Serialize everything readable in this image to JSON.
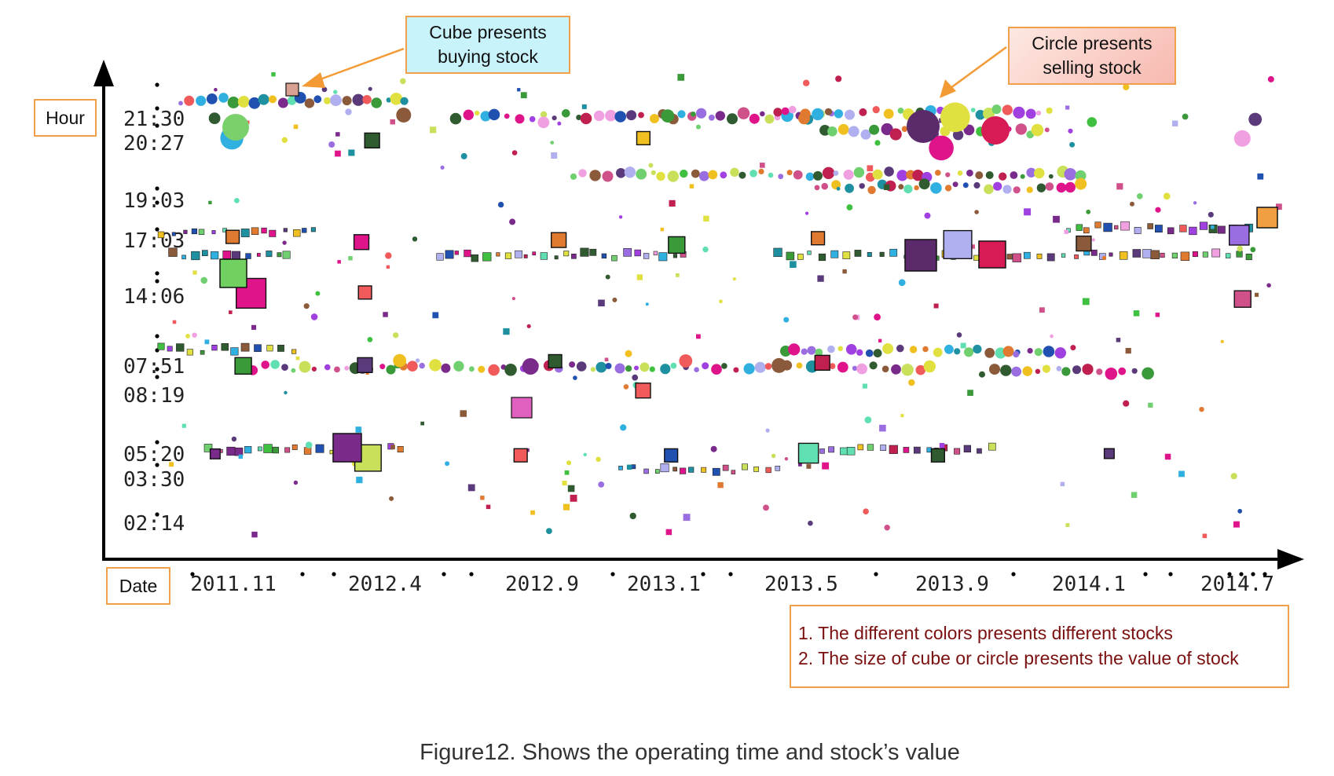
{
  "chart_data": {
    "type": "scatter",
    "xlabel": "Date",
    "ylabel": "Hour",
    "x_ticks": [
      "2011.11",
      "2012.4",
      "2012.9",
      "2013.1",
      "2013.5",
      "2013.9",
      "2014.1",
      "2014.7"
    ],
    "y_ticks": [
      "21:30",
      "20:27",
      "19:03",
      "17:03",
      "14:06",
      "07:51",
      "08:19",
      "05:20",
      "03:30",
      "02:14"
    ],
    "marker_legend": {
      "cube": "Cube presents\nbuying stock",
      "circle": "Circle presents\nselling stock"
    },
    "notes": [
      "1. The different colors presents different stocks",
      "2. The size of cube or circle presents the value of stock"
    ],
    "series": [
      {
        "marker": "cube",
        "points": [
          {
            "x": "2011.11",
            "y": "17:03",
            "size": 8
          },
          {
            "x": "2011.11",
            "y": "14:06",
            "size": 18
          },
          {
            "x": "2011.11",
            "y": "07:51",
            "size": 10
          },
          {
            "x": "2011.11",
            "y": "05:20",
            "size": 6
          },
          {
            "x": "2012.4",
            "y": "20:27",
            "size": 9
          },
          {
            "x": "2012.4",
            "y": "17:03",
            "size": 9
          },
          {
            "x": "2012.4",
            "y": "14:06",
            "size": 8
          },
          {
            "x": "2012.4",
            "y": "07:51",
            "size": 9
          },
          {
            "x": "2012.4",
            "y": "05:20",
            "size": 16
          },
          {
            "x": "2012.9",
            "y": "17:03",
            "size": 9
          },
          {
            "x": "2012.9",
            "y": "07:51",
            "size": 8
          },
          {
            "x": "2012.9",
            "y": "05:20",
            "size": 8
          },
          {
            "x": "2013.1",
            "y": "20:27",
            "size": 8
          },
          {
            "x": "2013.1",
            "y": "17:03",
            "size": 10
          },
          {
            "x": "2013.1",
            "y": "08:19",
            "size": 9
          },
          {
            "x": "2013.1",
            "y": "05:20",
            "size": 8
          },
          {
            "x": "2013.5",
            "y": "17:03",
            "size": 8
          },
          {
            "x": "2013.5",
            "y": "07:51",
            "size": 9
          },
          {
            "x": "2013.5",
            "y": "05:20",
            "size": 12
          },
          {
            "x": "2013.9",
            "y": "17:03",
            "size": 17
          },
          {
            "x": "2013.9",
            "y": "05:20",
            "size": 8
          },
          {
            "x": "2014.1",
            "y": "17:03",
            "size": 9
          },
          {
            "x": "2014.1",
            "y": "05:20",
            "size": 6
          },
          {
            "x": "2014.7",
            "y": "17:03",
            "size": 12
          },
          {
            "x": "2014.7",
            "y": "14:06",
            "size": 10
          }
        ]
      },
      {
        "marker": "circle",
        "points": [
          {
            "x": "2011.11",
            "y": "21:30",
            "size": 7
          },
          {
            "x": "2011.11",
            "y": "20:27",
            "size": 14
          },
          {
            "x": "2012.4",
            "y": "21:30",
            "size": 9
          },
          {
            "x": "2012.4",
            "y": "07:51",
            "size": 8
          },
          {
            "x": "2012.9",
            "y": "21:30",
            "size": 7
          },
          {
            "x": "2012.9",
            "y": "07:51",
            "size": 10
          },
          {
            "x": "2013.1",
            "y": "21:30",
            "size": 8
          },
          {
            "x": "2013.1",
            "y": "07:51",
            "size": 8
          },
          {
            "x": "2013.5",
            "y": "21:30",
            "size": 7
          },
          {
            "x": "2013.5",
            "y": "07:51",
            "size": 9
          },
          {
            "x": "2013.9",
            "y": "21:30",
            "size": 18
          },
          {
            "x": "2013.9",
            "y": "20:27",
            "size": 15
          },
          {
            "x": "2014.1",
            "y": "21:30",
            "size": 6
          },
          {
            "x": "2014.7",
            "y": "21:30",
            "size": 8
          },
          {
            "x": "2014.7",
            "y": "20:27",
            "size": 10
          }
        ]
      }
    ],
    "grid": false
  },
  "caption": "Figure12. Shows the operating time and stock’s value",
  "colors": {
    "axis": "#000000",
    "annotation_border": "#f0a04a",
    "arrow": "#f39a35",
    "cube_box": "#c9f3fb",
    "circle_box": "#f7b9b0",
    "note_text": "#7a1010"
  }
}
